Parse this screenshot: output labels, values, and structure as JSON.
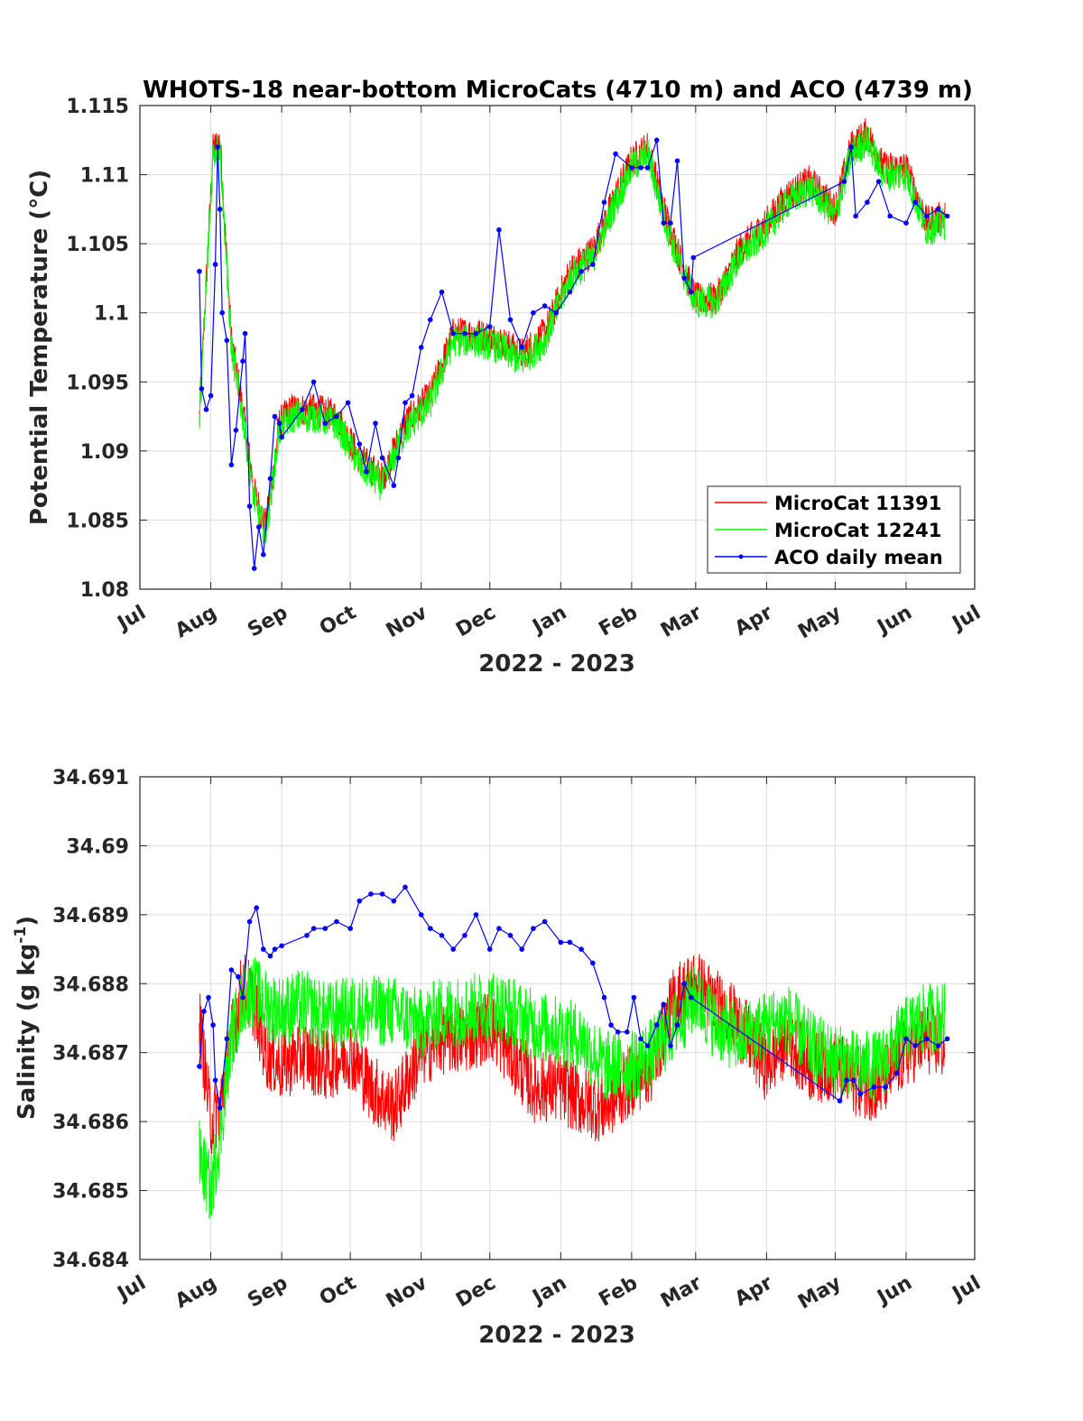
{
  "colors": {
    "microcat_11391": "#ff0000",
    "microcat_12241": "#00ff00",
    "aco": "#0000ff",
    "grid": "#dcdcdc",
    "axes": "#262626"
  },
  "chart_data": [
    {
      "type": "line",
      "title": "WHOTS-18 near-bottom MicroCats (4710 m) and ACO (4739 m)",
      "xlabel": "2022 - 2023",
      "ylabel": "Potential Temperature (°C)",
      "x_months": [
        "Jul",
        "Aug",
        "Sep",
        "Oct",
        "Nov",
        "Dec",
        "Jan",
        "Feb",
        "Mar",
        "Apr",
        "May",
        "Jun",
        "Jul"
      ],
      "ylim": [
        1.08,
        1.115
      ],
      "yticks": [
        1.08,
        1.085,
        1.09,
        1.095,
        1.1,
        1.105,
        1.11,
        1.115
      ],
      "ytick_labels": [
        "1.08",
        "1.085",
        "1.09",
        "1.095",
        "1.1",
        "1.105",
        "1.11",
        "1.115"
      ],
      "grid": true,
      "legend": {
        "placement": "bottom-right",
        "entries": [
          "MicroCat 11391",
          "MicroCat 12241",
          "ACO daily mean"
        ]
      },
      "series": [
        {
          "name": "MicroCat 11391",
          "style": "line",
          "color": "#ff0000",
          "x": [
            "2022-07-27",
            "2022-08-02",
            "2022-08-05",
            "2022-08-10",
            "2022-08-15",
            "2022-08-20",
            "2022-08-25",
            "2022-08-31",
            "2022-09-05",
            "2022-09-15",
            "2022-09-25",
            "2022-10-05",
            "2022-10-15",
            "2022-10-25",
            "2022-11-05",
            "2022-11-15",
            "2022-11-25",
            "2022-12-05",
            "2022-12-15",
            "2022-12-25",
            "2023-01-05",
            "2023-01-15",
            "2023-01-25",
            "2023-02-01",
            "2023-02-08",
            "2023-02-15",
            "2023-02-22",
            "2023-03-01",
            "2023-03-10",
            "2023-03-20",
            "2023-04-01",
            "2023-04-10",
            "2023-04-20",
            "2023-05-01",
            "2023-05-08",
            "2023-05-15",
            "2023-05-22",
            "2023-06-01",
            "2023-06-10",
            "2023-06-18"
          ],
          "y": [
            1.0925,
            1.1118,
            1.1125,
            1.098,
            1.093,
            1.087,
            1.0845,
            1.092,
            1.093,
            1.093,
            1.0925,
            1.0895,
            1.088,
            1.092,
            1.094,
            1.0985,
            1.0985,
            1.098,
            1.097,
            1.0985,
            1.103,
            1.1045,
            1.1085,
            1.111,
            1.112,
            1.1075,
            1.104,
            1.101,
            1.101,
            1.1045,
            1.1065,
            1.1085,
            1.1095,
            1.1075,
            1.112,
            1.113,
            1.1105,
            1.1105,
            1.1065,
            1.107
          ]
        },
        {
          "name": "MicroCat 12241",
          "style": "line",
          "color": "#00ff00",
          "x": [
            "2022-07-27",
            "2022-08-02",
            "2022-08-05",
            "2022-08-10",
            "2022-08-15",
            "2022-08-20",
            "2022-08-25",
            "2022-08-31",
            "2022-09-05",
            "2022-09-15",
            "2022-09-25",
            "2022-10-05",
            "2022-10-15",
            "2022-10-25",
            "2022-11-05",
            "2022-11-15",
            "2022-11-25",
            "2022-12-05",
            "2022-12-15",
            "2022-12-25",
            "2023-01-05",
            "2023-01-15",
            "2023-01-25",
            "2023-02-01",
            "2023-02-08",
            "2023-02-15",
            "2023-02-22",
            "2023-03-01",
            "2023-03-10",
            "2023-03-20",
            "2023-04-01",
            "2023-04-10",
            "2023-04-20",
            "2023-05-01",
            "2023-05-08",
            "2023-05-15",
            "2023-05-22",
            "2023-06-01",
            "2023-06-10",
            "2023-06-18"
          ],
          "y": [
            1.092,
            1.1115,
            1.112,
            1.0975,
            1.0925,
            1.0865,
            1.084,
            1.0915,
            1.0925,
            1.0925,
            1.092,
            1.089,
            1.0875,
            1.0915,
            1.0935,
            1.098,
            1.098,
            1.0975,
            1.0965,
            1.098,
            1.1025,
            1.104,
            1.108,
            1.1105,
            1.1115,
            1.107,
            1.1035,
            1.1008,
            1.1008,
            1.104,
            1.106,
            1.108,
            1.109,
            1.107,
            1.1115,
            1.1125,
            1.11,
            1.11,
            1.106,
            1.1065
          ]
        },
        {
          "name": "ACO daily mean",
          "style": "line-dot",
          "color": "#0000ff",
          "x": [
            "2022-07-27",
            "2022-07-28",
            "2022-07-30",
            "2022-08-01",
            "2022-08-03",
            "2022-08-04",
            "2022-08-05",
            "2022-08-06",
            "2022-08-08",
            "2022-08-10",
            "2022-08-12",
            "2022-08-15",
            "2022-08-16",
            "2022-08-18",
            "2022-08-20",
            "2022-08-22",
            "2022-08-24",
            "2022-08-27",
            "2022-08-29",
            "2022-08-31",
            "2022-09-01",
            "2022-09-10",
            "2022-09-15",
            "2022-09-20",
            "2022-09-25",
            "2022-09-30",
            "2022-10-05",
            "2022-10-08",
            "2022-10-12",
            "2022-10-15",
            "2022-10-20",
            "2022-10-22",
            "2022-10-25",
            "2022-10-28",
            "2022-11-01",
            "2022-11-05",
            "2022-11-10",
            "2022-11-15",
            "2022-11-20",
            "2022-11-25",
            "2022-12-01",
            "2022-12-05",
            "2022-12-10",
            "2022-12-15",
            "2022-12-20",
            "2022-12-25",
            "2022-12-30",
            "2023-01-05",
            "2023-01-10",
            "2023-01-15",
            "2023-01-20",
            "2023-01-25",
            "2023-02-01",
            "2023-02-05",
            "2023-02-08",
            "2023-02-12",
            "2023-02-15",
            "2023-02-18",
            "2023-02-21",
            "2023-02-24",
            "2023-02-27",
            "2023-02-28",
            "2023-05-05",
            "2023-05-08",
            "2023-05-10",
            "2023-05-15",
            "2023-05-20",
            "2023-05-25",
            "2023-06-01",
            "2023-06-05",
            "2023-06-10",
            "2023-06-15",
            "2023-06-19"
          ],
          "y": [
            1.103,
            1.0945,
            1.093,
            1.094,
            1.1035,
            1.112,
            1.1075,
            1.1,
            1.098,
            1.089,
            1.0915,
            1.0965,
            1.0985,
            1.086,
            1.0815,
            1.0845,
            1.0825,
            1.088,
            1.0925,
            1.092,
            1.091,
            1.093,
            1.095,
            1.092,
            1.0925,
            1.0935,
            1.0905,
            1.0885,
            1.092,
            1.0895,
            1.0875,
            1.0895,
            1.0935,
            1.094,
            1.0975,
            1.0995,
            1.1015,
            1.0985,
            1.0985,
            1.0985,
            1.099,
            1.106,
            1.0995,
            1.0975,
            1.1,
            1.1005,
            1.1,
            1.1015,
            1.103,
            1.1035,
            1.108,
            1.1115,
            1.1105,
            1.1105,
            1.1105,
            1.1125,
            1.1065,
            1.1065,
            1.111,
            1.1025,
            1.1015,
            1.104,
            1.1095,
            1.112,
            1.107,
            1.108,
            1.1095,
            1.107,
            1.1065,
            1.108,
            1.107,
            1.1075,
            1.107
          ]
        }
      ]
    },
    {
      "type": "line",
      "title": "",
      "xlabel": "2022 - 2023",
      "ylabel_main": "Salinity (g kg",
      "ylabel_sup": "-1",
      "ylabel_end": ")",
      "x_months": [
        "Jul",
        "Aug",
        "Sep",
        "Oct",
        "Nov",
        "Dec",
        "Jan",
        "Feb",
        "Mar",
        "Apr",
        "May",
        "Jun",
        "Jul"
      ],
      "ylim": [
        34.684,
        34.691
      ],
      "yticks": [
        34.684,
        34.685,
        34.686,
        34.687,
        34.688,
        34.689,
        34.69,
        34.691
      ],
      "ytick_labels": [
        "34.684",
        "34.685",
        "34.686",
        "34.687",
        "34.688",
        "34.689",
        "34.69",
        "34.691"
      ],
      "grid": true,
      "series": [
        {
          "name": "MicroCat 11391",
          "style": "line",
          "color": "#ff0000",
          "x": [
            "2022-07-27",
            "2022-08-01",
            "2022-08-05",
            "2022-08-10",
            "2022-08-15",
            "2022-08-20",
            "2022-08-25",
            "2022-09-01",
            "2022-09-10",
            "2022-09-20",
            "2022-10-01",
            "2022-10-10",
            "2022-10-20",
            "2022-11-01",
            "2022-11-10",
            "2022-11-20",
            "2022-12-01",
            "2022-12-10",
            "2022-12-20",
            "2023-01-01",
            "2023-01-10",
            "2023-01-20",
            "2023-02-01",
            "2023-02-10",
            "2023-02-20",
            "2023-03-01",
            "2023-03-10",
            "2023-03-20",
            "2023-04-01",
            "2023-04-10",
            "2023-04-20",
            "2023-05-01",
            "2023-05-10",
            "2023-05-20",
            "2023-06-01",
            "2023-06-10",
            "2023-06-18"
          ],
          "y": [
            34.6875,
            34.686,
            34.6862,
            34.6872,
            34.688,
            34.6877,
            34.687,
            34.6868,
            34.687,
            34.6868,
            34.687,
            34.6865,
            34.6862,
            34.687,
            34.6872,
            34.6872,
            34.6874,
            34.687,
            34.6865,
            34.6865,
            34.6863,
            34.6862,
            34.6866,
            34.6868,
            34.6878,
            34.688,
            34.6877,
            34.6874,
            34.6868,
            34.6872,
            34.6868,
            34.6868,
            34.6866,
            34.6865,
            34.687,
            34.6872,
            34.6871
          ]
        },
        {
          "name": "MicroCat 12241",
          "style": "line",
          "color": "#00ff00",
          "x": [
            "2022-07-27",
            "2022-08-01",
            "2022-08-05",
            "2022-08-10",
            "2022-08-15",
            "2022-08-20",
            "2022-08-25",
            "2022-09-01",
            "2022-09-10",
            "2022-09-20",
            "2022-10-01",
            "2022-10-10",
            "2022-10-20",
            "2022-11-01",
            "2022-11-10",
            "2022-11-20",
            "2022-12-01",
            "2022-12-10",
            "2022-12-20",
            "2023-01-01",
            "2023-01-10",
            "2023-01-20",
            "2023-02-01",
            "2023-02-10",
            "2023-02-20",
            "2023-03-01",
            "2023-03-10",
            "2023-03-20",
            "2023-04-01",
            "2023-04-10",
            "2023-04-20",
            "2023-05-01",
            "2023-05-10",
            "2023-05-20",
            "2023-06-01",
            "2023-06-10",
            "2023-06-18"
          ],
          "y": [
            34.6855,
            34.685,
            34.6858,
            34.6872,
            34.6878,
            34.6879,
            34.6877,
            34.6876,
            34.6877,
            34.6875,
            34.6876,
            34.6876,
            34.6876,
            34.6874,
            34.6876,
            34.6876,
            34.6877,
            34.6876,
            34.6874,
            34.6873,
            34.6872,
            34.6868,
            34.6868,
            34.687,
            34.6874,
            34.6878,
            34.6874,
            34.6872,
            34.6874,
            34.6875,
            34.6871,
            34.6869,
            34.6868,
            34.6868,
            34.6873,
            34.6875,
            34.6875
          ]
        },
        {
          "name": "ACO daily mean",
          "style": "line-dot",
          "color": "#0000ff",
          "x": [
            "2022-07-27",
            "2022-07-29",
            "2022-07-31",
            "2022-08-02",
            "2022-08-03",
            "2022-08-05",
            "2022-08-08",
            "2022-08-10",
            "2022-08-13",
            "2022-08-15",
            "2022-08-18",
            "2022-08-21",
            "2022-08-24",
            "2022-08-27",
            "2022-08-29",
            "2022-09-01",
            "2022-09-12",
            "2022-09-15",
            "2022-09-20",
            "2022-09-25",
            "2022-10-01",
            "2022-10-05",
            "2022-10-10",
            "2022-10-15",
            "2022-10-20",
            "2022-10-25",
            "2022-11-01",
            "2022-11-05",
            "2022-11-10",
            "2022-11-15",
            "2022-11-20",
            "2022-11-25",
            "2022-12-01",
            "2022-12-05",
            "2022-12-10",
            "2022-12-15",
            "2022-12-20",
            "2022-12-25",
            "2023-01-01",
            "2023-01-05",
            "2023-01-10",
            "2023-01-15",
            "2023-01-20",
            "2023-01-23",
            "2023-01-26",
            "2023-01-30",
            "2023-02-02",
            "2023-02-05",
            "2023-02-08",
            "2023-02-12",
            "2023-02-15",
            "2023-02-18",
            "2023-02-21",
            "2023-02-24",
            "2023-02-27",
            "2023-05-03",
            "2023-05-06",
            "2023-05-09",
            "2023-05-12",
            "2023-05-18",
            "2023-05-23",
            "2023-05-28",
            "2023-06-01",
            "2023-06-05",
            "2023-06-10",
            "2023-06-15",
            "2023-06-19"
          ],
          "y": [
            34.6868,
            34.6876,
            34.6878,
            34.6874,
            34.6866,
            34.6862,
            34.6872,
            34.6882,
            34.6881,
            34.6878,
            34.6889,
            34.6891,
            34.6885,
            34.6884,
            34.6885,
            34.68855,
            34.6887,
            34.6888,
            34.6888,
            34.6889,
            34.6888,
            34.6892,
            34.6893,
            34.6893,
            34.6892,
            34.6894,
            34.689,
            34.6888,
            34.6887,
            34.6885,
            34.6887,
            34.689,
            34.6885,
            34.6888,
            34.6887,
            34.6885,
            34.6888,
            34.6889,
            34.6886,
            34.6886,
            34.6885,
            34.6883,
            34.6878,
            34.6874,
            34.6873,
            34.6873,
            34.6878,
            34.6872,
            34.6871,
            34.6874,
            34.6877,
            34.6871,
            34.6874,
            34.688,
            34.6878,
            34.6863,
            34.6866,
            34.6866,
            34.6864,
            34.6865,
            34.6865,
            34.6867,
            34.6872,
            34.6871,
            34.6872,
            34.6871,
            34.6872
          ]
        }
      ]
    }
  ]
}
